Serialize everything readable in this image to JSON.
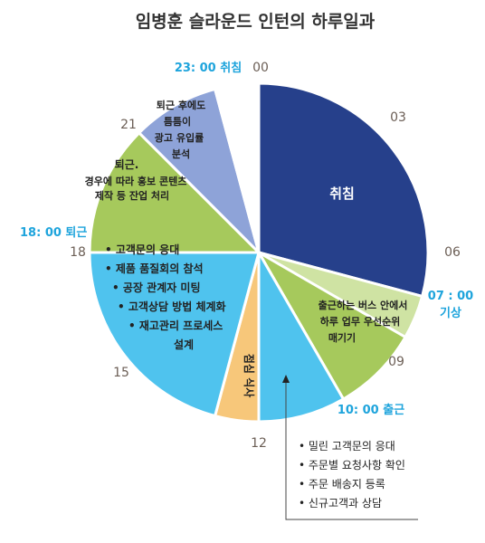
{
  "title": "임병훈 슬라운드 인턴의 하루일과",
  "colors": {
    "dark_blue": "#26408b",
    "light_green": "#cfe3a3",
    "green": "#a6c95c",
    "sky": "#4fc3ee",
    "orange": "#f7c77a",
    "periwinkle": "#8ea3d8"
  },
  "chart_data": {
    "type": "pie",
    "unit": "hour",
    "total": 24,
    "slices": [
      {
        "start": 0,
        "end": 7,
        "color": "#26408b",
        "lines": [
          "취침"
        ]
      },
      {
        "start": 7,
        "end": 8,
        "color": "#cfe3a3",
        "lines": []
      },
      {
        "start": 8,
        "end": 10,
        "color": "#a6c95c",
        "lines": [
          "출근하는 버스 안에서",
          "하루 업무 우선순위",
          "매기기"
        ]
      },
      {
        "start": 10,
        "end": 12,
        "color": "#4fc3ee",
        "lines": []
      },
      {
        "start": 12,
        "end": 13,
        "color": "#f7c77a",
        "lines": [
          "점심 식사"
        ]
      },
      {
        "start": 13,
        "end": 18,
        "color": "#4fc3ee",
        "lines": [
          "•  고객문의 응대",
          "•  제품 품질회의 참석",
          "•  공장 관계자 미팅",
          "•  고객상담 방법 체계화",
          "•  재고관리 프로세스",
          "설계"
        ]
      },
      {
        "start": 18,
        "end": 21,
        "color": "#a6c95c",
        "lines": [
          "퇴근.",
          "경우에 따라 홍보 콘텐츠",
          "제작 등 잔업 처리"
        ]
      },
      {
        "start": 21,
        "end": 23,
        "color": "#8ea3d8",
        "lines": [
          "퇴근 후에도",
          "틈틈이",
          "광고 유입률",
          "분석"
        ]
      },
      {
        "start": 23,
        "end": 24,
        "color": "#ffffff",
        "lines": []
      }
    ],
    "hour_labels": [
      "00",
      "03",
      "06",
      "09",
      "12",
      "15",
      "18",
      "21"
    ],
    "event_labels": [
      {
        "time": "23:00",
        "text": "23: 00 취침"
      },
      {
        "time": "07:00",
        "text": "07 : 00"
      },
      {
        "time": "07:00",
        "text": "기상"
      },
      {
        "time": "10:00",
        "text": "10: 00 출근"
      },
      {
        "time": "18:00",
        "text": "18: 00 퇴근"
      }
    ],
    "callout_items": [
      "•  밀린 고객문의 응대",
      "•  주문별 요청사항 확인",
      "•  주문 배송지 등록",
      "•  신규고객과 상담"
    ]
  }
}
